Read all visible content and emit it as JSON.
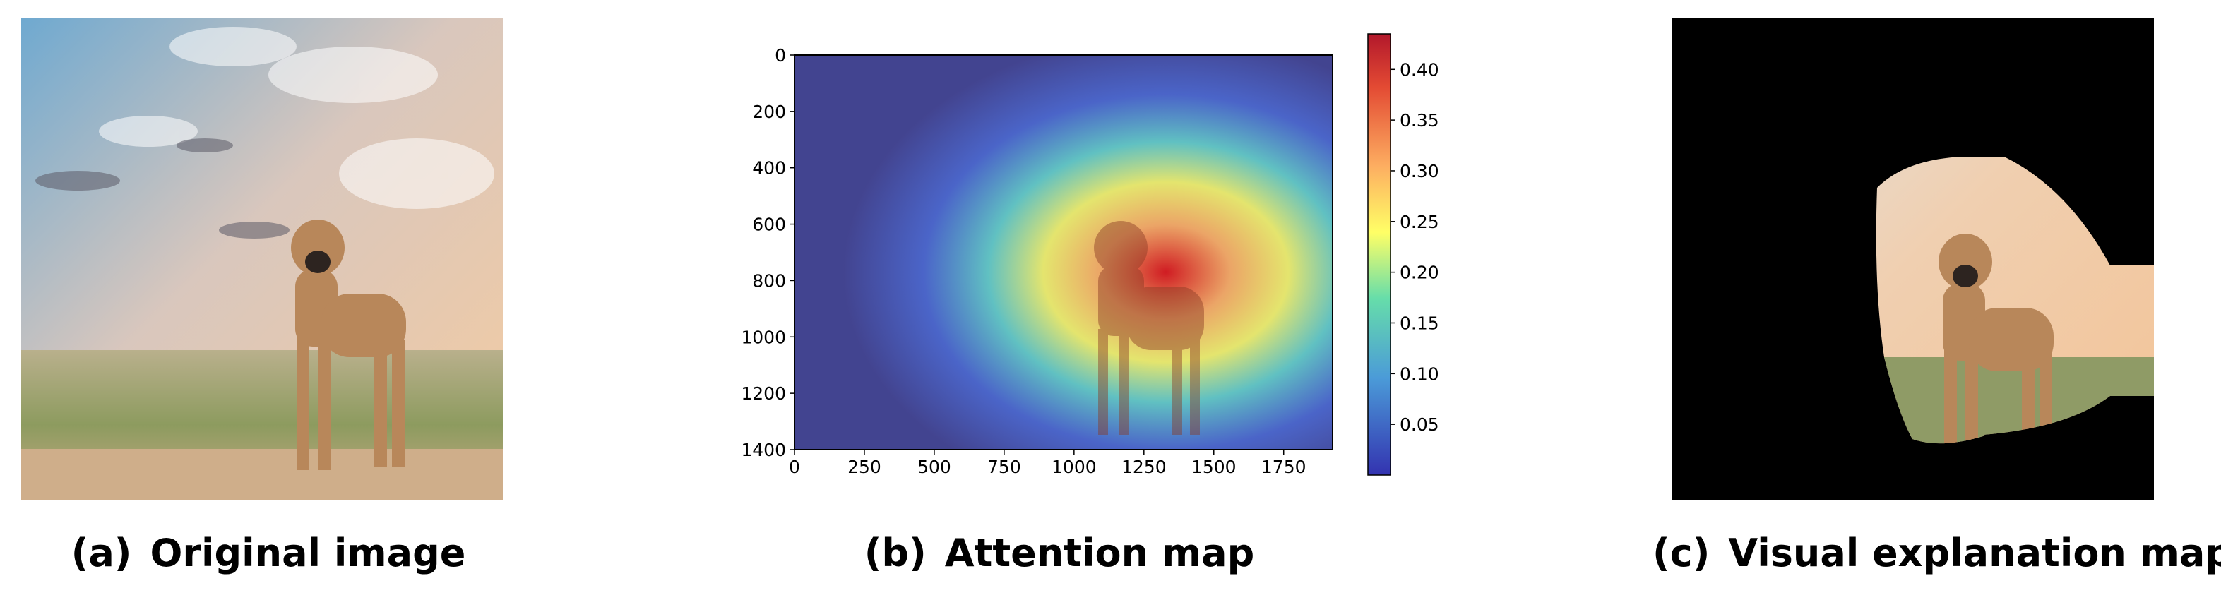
{
  "panels": [
    {
      "label": "(a)",
      "caption": "Original image"
    },
    {
      "label": "(b)",
      "caption": "Attention map"
    },
    {
      "label": "(c)",
      "caption": "Visual explanation map"
    }
  ],
  "attention_map": {
    "y_ticks": [
      "0",
      "200",
      "400",
      "600",
      "800",
      "1000",
      "1200",
      "1400"
    ],
    "x_ticks": [
      "0",
      "250",
      "500",
      "750",
      "1000",
      "1250",
      "1500",
      "1750"
    ],
    "colorbar_ticks": [
      "0.40",
      "0.35",
      "0.30",
      "0.25",
      "0.20",
      "0.15",
      "0.10",
      "0.05"
    ]
  },
  "colors": {
    "sky_blue": "#7fb4d6",
    "sunset": "#f2c9a0",
    "grass": "#8a9a5a",
    "dog": "#b8875a",
    "mask": "#000000"
  }
}
